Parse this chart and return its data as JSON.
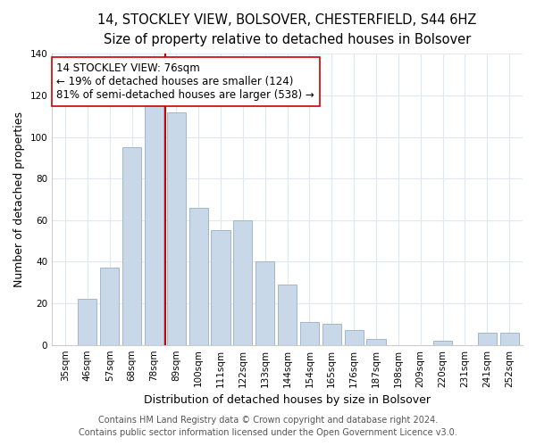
{
  "title": "14, STOCKLEY VIEW, BOLSOVER, CHESTERFIELD, S44 6HZ",
  "subtitle": "Size of property relative to detached houses in Bolsover",
  "xlabel": "Distribution of detached houses by size in Bolsover",
  "ylabel": "Number of detached properties",
  "bar_labels": [
    "35sqm",
    "46sqm",
    "57sqm",
    "68sqm",
    "78sqm",
    "89sqm",
    "100sqm",
    "111sqm",
    "122sqm",
    "133sqm",
    "144sqm",
    "154sqm",
    "165sqm",
    "176sqm",
    "187sqm",
    "198sqm",
    "209sqm",
    "220sqm",
    "231sqm",
    "241sqm",
    "252sqm"
  ],
  "bar_values": [
    0,
    22,
    37,
    95,
    118,
    112,
    66,
    55,
    60,
    40,
    29,
    11,
    10,
    7,
    3,
    0,
    0,
    2,
    0,
    6,
    6
  ],
  "bar_color": "#c8d8e8",
  "bar_edge_color": "#a0b8cc",
  "vline_x": 4.5,
  "vline_color": "#cc0000",
  "annotation_text": "14 STOCKLEY VIEW: 76sqm\n← 19% of detached houses are smaller (124)\n81% of semi-detached houses are larger (538) →",
  "annotation_box_color": "#ffffff",
  "annotation_box_edge": "#cc0000",
  "ylim": [
    0,
    140
  ],
  "yticks": [
    0,
    20,
    40,
    60,
    80,
    100,
    120,
    140
  ],
  "footer1": "Contains HM Land Registry data © Crown copyright and database right 2024.",
  "footer2": "Contains public sector information licensed under the Open Government Licence v3.0.",
  "bg_color": "#ffffff",
  "grid_color": "#dde8f0",
  "title_fontsize": 10.5,
  "subtitle_fontsize": 9.5,
  "axis_label_fontsize": 9,
  "tick_fontsize": 7.5,
  "annotation_fontsize": 8.5,
  "footer_fontsize": 7
}
